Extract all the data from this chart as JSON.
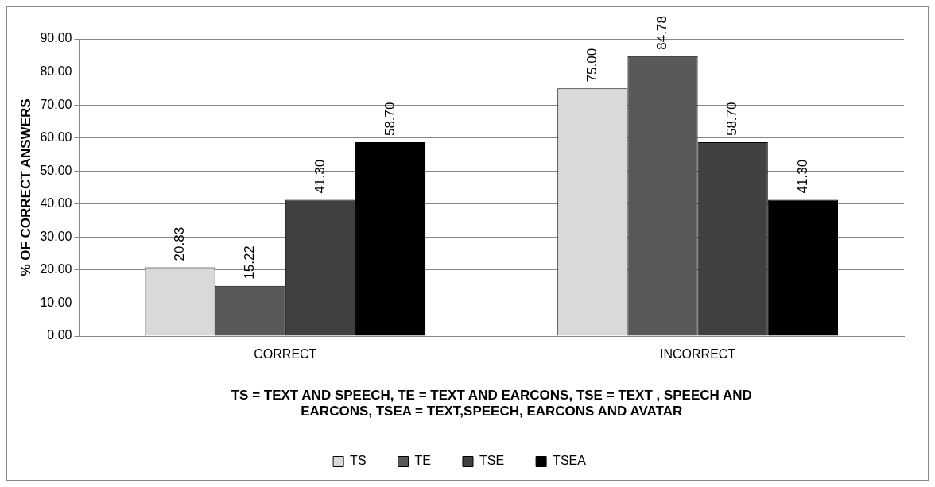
{
  "chart_data": {
    "type": "bar",
    "xlabel": "TS = TEXT AND SPEECH, TE = TEXT AND EARCONS, TSE = TEXT , SPEECH AND EARCONS, TSEA = TEXT,SPEECH, EARCONS AND AVATAR",
    "ylabel": "% OF CORRECT ANSWERS",
    "categories": [
      "CORRECT",
      "INCORRECT"
    ],
    "series": [
      {
        "name": "TS",
        "color": "#d9d9d9",
        "values": [
          20.83,
          75.0
        ],
        "value_labels": [
          "20.83",
          "75.00"
        ]
      },
      {
        "name": "TE",
        "color": "#595959",
        "values": [
          15.22,
          84.78
        ],
        "value_labels": [
          "15.22",
          "84.78"
        ]
      },
      {
        "name": "TSE",
        "color": "#404040",
        "values": [
          41.3,
          58.7
        ],
        "value_labels": [
          "41.30",
          "58.70"
        ]
      },
      {
        "name": "TSEA",
        "color": "#000000",
        "values": [
          58.7,
          41.3
        ],
        "value_labels": [
          "58.70",
          "41.30"
        ]
      }
    ],
    "ylim": [
      0,
      90
    ],
    "yticks": [
      {
        "value": 0,
        "label": "0.00"
      },
      {
        "value": 10,
        "label": "10.00"
      },
      {
        "value": 20,
        "label": "20.00"
      },
      {
        "value": 30,
        "label": "30.00"
      },
      {
        "value": 40,
        "label": "40.00"
      },
      {
        "value": 50,
        "label": "50.00"
      },
      {
        "value": 60,
        "label": "60.00"
      },
      {
        "value": 70,
        "label": "70.00"
      },
      {
        "value": 80,
        "label": "80.00"
      },
      {
        "value": 90,
        "label": "90.00"
      }
    ],
    "grid": "y",
    "legend": "bottom"
  }
}
